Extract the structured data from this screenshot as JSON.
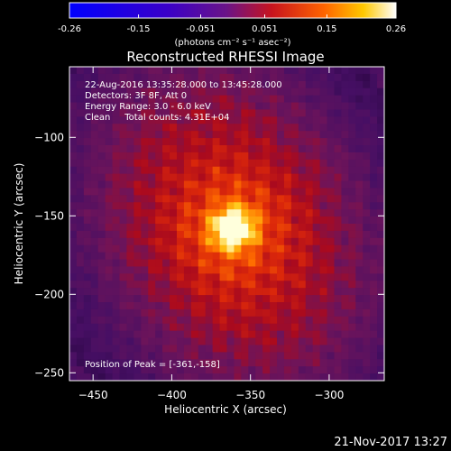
{
  "colorbar": {
    "ticks": [
      "-0.26",
      "-0.15",
      "-0.051",
      "0.051",
      "0.15",
      "0.26"
    ],
    "range": [
      -0.26,
      0.26
    ],
    "units": "(photons cm⁻² s⁻¹ asec⁻²)"
  },
  "chart_data": {
    "type": "heatmap",
    "title": "Reconstructed RHESSI Image",
    "xlabel": "Heliocentric X (arcsec)",
    "ylabel": "Heliocentric Y (arcsec)",
    "xlim": [
      -465,
      -265
    ],
    "ylim": [
      -255,
      -55
    ],
    "xticks": [
      -450,
      -400,
      -350,
      -300
    ],
    "yticks": [
      -250,
      -200,
      -150,
      -100
    ],
    "info_lines": [
      "22-Aug-2016 13:35:28.000 to 13:45:28.000",
      "Detectors: 3F 8F, Att 0",
      "Energy Range: 3.0 - 6.0 keV",
      "Clean     Total counts: 4.31E+04"
    ],
    "peak_label": "Position of Peak = [-361,-158]",
    "peak": {
      "x": -361,
      "y": -158
    },
    "colormap": "rhessi-heat"
  },
  "footer": {
    "timestamp": "21-Nov-2017 13:27"
  }
}
